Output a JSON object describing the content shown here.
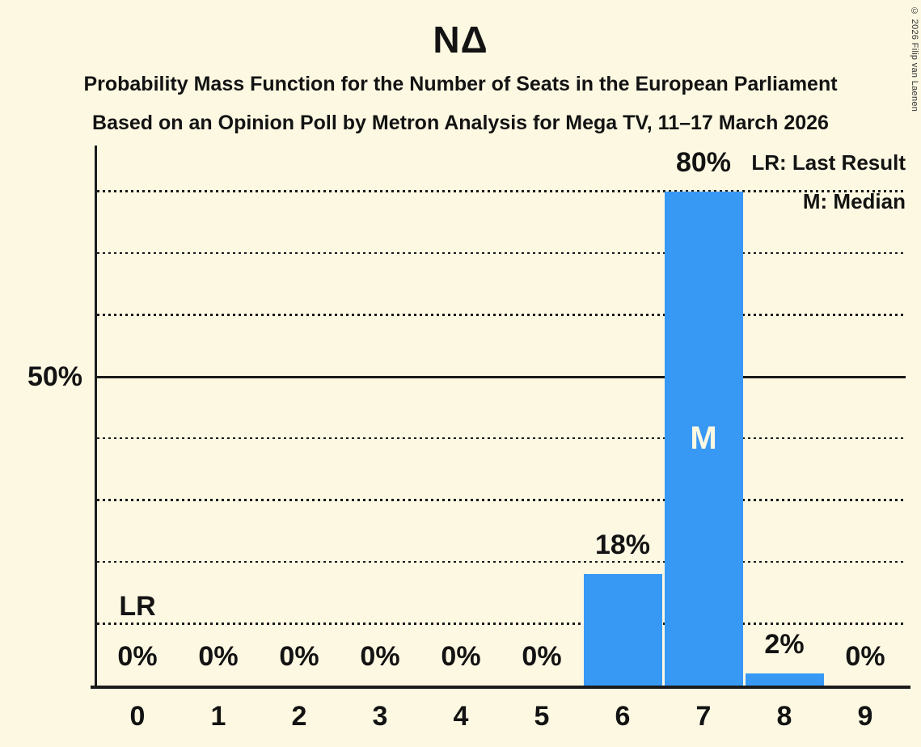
{
  "title": "ΝΔ",
  "subtitle1": "Probability Mass Function for the Number of Seats in the European Parliament",
  "subtitle2": "Based on an Opinion Poll by Metron Analysis for Mega TV, 11–17 March 2026",
  "copyright": "© 2026 Filip van Laenen",
  "legend": {
    "lr": "LR: Last Result",
    "m": "M: Median"
  },
  "colors": {
    "background": "#FCF8E2",
    "bar": "#3899F5",
    "text": "#131313",
    "grid": "#1b1b1b"
  },
  "chart_data": {
    "type": "bar",
    "title": "ΝΔ",
    "xlabel": "",
    "ylabel": "",
    "categories": [
      "0",
      "1",
      "2",
      "3",
      "4",
      "5",
      "6",
      "7",
      "8",
      "9"
    ],
    "values": [
      0,
      0,
      0,
      0,
      0,
      0,
      18,
      80,
      2,
      0
    ],
    "value_labels": [
      "0%",
      "0%",
      "0%",
      "0%",
      "0%",
      "0%",
      "18%",
      "80%",
      "2%",
      "0%"
    ],
    "ylim": [
      0,
      87.5
    ],
    "y_tick_label": "50%",
    "y_tick_value": 50,
    "gridlines_percent": [
      10,
      20,
      30,
      40,
      50,
      60,
      70,
      80
    ],
    "solid_gridline_percent": 50,
    "grid": "dotted horizontal",
    "median_category": "7",
    "median_marker": "M",
    "last_result_category": "0",
    "last_result_marker": "LR",
    "legend_position": "top-right"
  }
}
